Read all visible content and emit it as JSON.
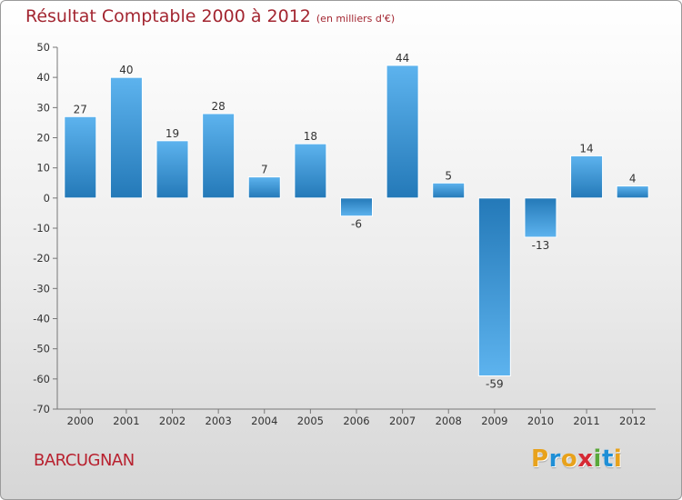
{
  "chart_data": {
    "type": "bar",
    "title": "Résultat Comptable 2000 à 2012",
    "subtitle": "(en milliers d'€)",
    "categories": [
      "2000",
      "2001",
      "2002",
      "2003",
      "2004",
      "2005",
      "2006",
      "2007",
      "2008",
      "2009",
      "2010",
      "2011",
      "2012"
    ],
    "values": [
      27,
      40,
      19,
      28,
      7,
      18,
      -6,
      44,
      5,
      -59,
      -13,
      14,
      4
    ],
    "ylim": [
      -70,
      50
    ],
    "yticks": [
      50,
      40,
      30,
      20,
      10,
      0,
      -10,
      -20,
      -30,
      -40,
      -50,
      -60,
      -70
    ],
    "xlabel": "",
    "ylabel": "",
    "grid": false,
    "bar_color_light": "#5db3ee",
    "bar_color_dark": "#2479b8"
  },
  "commune": "BARCUGNAN",
  "logo": {
    "text": "Proxiti",
    "letters": [
      "P",
      "r",
      "o",
      "x",
      "i",
      "t",
      "i"
    ],
    "colors": [
      "#e8a21c",
      "#1f8fd6",
      "#e8a21c",
      "#d62a35",
      "#59a83a",
      "#1f8fd6",
      "#e8a21c"
    ]
  },
  "colors": {
    "title": "#a32631",
    "commune": "#b8212f",
    "axis": "#333333"
  }
}
